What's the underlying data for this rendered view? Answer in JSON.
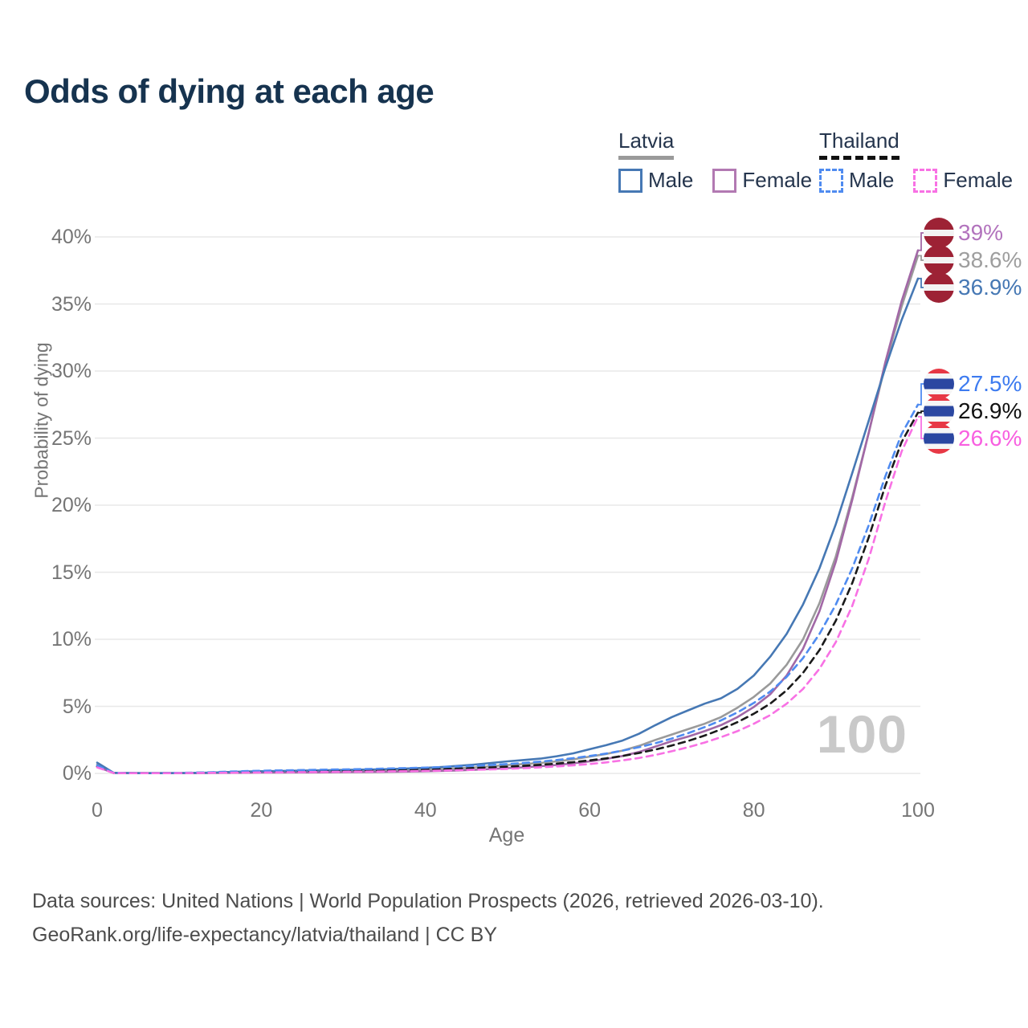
{
  "title": "Odds of dying at each age",
  "legend": {
    "groups": [
      {
        "country": "Latvia",
        "line_style": "solid",
        "underline_color": "#9a9a9a",
        "items": [
          {
            "label": "Male",
            "color": "#4678b4"
          },
          {
            "label": "Female",
            "color": "#b279b2"
          }
        ]
      },
      {
        "country": "Thailand",
        "line_style": "dashed",
        "underline_color": "#111111",
        "items": [
          {
            "label": "Male",
            "color": "#4f8bf0"
          },
          {
            "label": "Female",
            "color": "#f871e4"
          }
        ]
      }
    ]
  },
  "axes": {
    "xlabel": "Age",
    "ylabel": "Probability of dying",
    "xticks": [
      0,
      20,
      40,
      60,
      80,
      100
    ],
    "yticks": [
      "0%",
      "5%",
      "10%",
      "15%",
      "20%",
      "25%",
      "30%",
      "35%",
      "40%"
    ],
    "xlim": [
      0,
      100
    ],
    "ylim": [
      0,
      40
    ],
    "grid": true
  },
  "watermark": "100",
  "footer": {
    "line1": "Data sources: United Nations | World Population Prospects (2026, retrieved 2026-03-10).",
    "line2": "GeoRank.org/life-expectancy/latvia/thailand | CC BY"
  },
  "chart_data": {
    "type": "line",
    "title": "Odds of dying at each age",
    "xlabel": "Age",
    "ylabel": "Probability of dying",
    "x_ages": [
      0,
      2,
      4,
      6,
      8,
      10,
      12,
      14,
      16,
      18,
      20,
      22,
      24,
      26,
      28,
      30,
      32,
      34,
      36,
      38,
      40,
      42,
      44,
      46,
      48,
      50,
      52,
      54,
      56,
      58,
      60,
      62,
      64,
      66,
      68,
      70,
      72,
      74,
      76,
      78,
      80,
      82,
      84,
      86,
      88,
      90,
      92,
      94,
      96,
      98,
      100
    ],
    "series": [
      {
        "name": "Latvia Male",
        "country": "latvia",
        "color": "#4678b4",
        "dash": false,
        "end_label": "36.9%",
        "end_label_color": "#4678b4",
        "values": [
          0.8,
          0.05,
          0.03,
          0.02,
          0.02,
          0.03,
          0.04,
          0.06,
          0.1,
          0.14,
          0.16,
          0.18,
          0.2,
          0.22,
          0.24,
          0.26,
          0.28,
          0.3,
          0.33,
          0.37,
          0.42,
          0.48,
          0.56,
          0.66,
          0.78,
          0.9,
          1.0,
          1.1,
          1.28,
          1.5,
          1.8,
          2.1,
          2.45,
          2.95,
          3.6,
          4.2,
          4.7,
          5.2,
          5.6,
          6.3,
          7.3,
          8.7,
          10.4,
          12.6,
          15.3,
          18.6,
          22.4,
          26.3,
          30.2,
          33.8,
          36.9
        ]
      },
      {
        "name": "Latvia Female",
        "country": "latvia",
        "color": "#a268a6",
        "dash": false,
        "end_label": "39%",
        "end_label_color": "#b273bd",
        "values": [
          0.5,
          0.03,
          0.02,
          0.015,
          0.015,
          0.02,
          0.02,
          0.03,
          0.04,
          0.05,
          0.06,
          0.06,
          0.07,
          0.07,
          0.08,
          0.09,
          0.1,
          0.11,
          0.12,
          0.14,
          0.16,
          0.19,
          0.22,
          0.27,
          0.33,
          0.4,
          0.46,
          0.54,
          0.63,
          0.75,
          0.9,
          1.08,
          1.3,
          1.6,
          2.0,
          2.4,
          2.75,
          3.15,
          3.6,
          4.2,
          4.95,
          5.9,
          7.3,
          9.3,
          12.1,
          15.8,
          20.4,
          25.4,
          30.6,
          35.2,
          39.0
        ]
      },
      {
        "name": "Latvia Both sexes",
        "country": "latvia",
        "color": "#9a9a9a",
        "dash": false,
        "end_label": "38.6%",
        "end_label_color": "#9e9e9e",
        "values": [
          0.65,
          0.04,
          0.03,
          0.02,
          0.02,
          0.02,
          0.03,
          0.05,
          0.07,
          0.1,
          0.11,
          0.12,
          0.13,
          0.15,
          0.16,
          0.18,
          0.19,
          0.21,
          0.23,
          0.26,
          0.29,
          0.33,
          0.38,
          0.45,
          0.53,
          0.62,
          0.7,
          0.78,
          0.9,
          1.05,
          1.25,
          1.45,
          1.7,
          2.05,
          2.5,
          2.9,
          3.3,
          3.7,
          4.2,
          4.9,
          5.7,
          6.7,
          8.1,
          10.0,
          12.7,
          16.2,
          20.6,
          25.4,
          30.4,
          34.8,
          38.6
        ]
      },
      {
        "name": "Thailand Male",
        "country": "thailand",
        "color": "#4f8bf0",
        "dash": true,
        "end_label": "27.5%",
        "end_label_color": "#3d7bf0",
        "values": [
          0.6,
          0.04,
          0.03,
          0.02,
          0.03,
          0.04,
          0.06,
          0.09,
          0.13,
          0.17,
          0.2,
          0.22,
          0.24,
          0.26,
          0.28,
          0.3,
          0.32,
          0.34,
          0.37,
          0.4,
          0.43,
          0.47,
          0.52,
          0.57,
          0.63,
          0.7,
          0.78,
          0.88,
          1.0,
          1.14,
          1.3,
          1.48,
          1.7,
          1.95,
          2.25,
          2.6,
          3.0,
          3.45,
          3.95,
          4.55,
          5.25,
          6.1,
          7.2,
          8.6,
          10.4,
          12.6,
          15.3,
          18.5,
          22.1,
          25.3,
          27.5
        ]
      },
      {
        "name": "Thailand Both sexes",
        "country": "thailand",
        "color": "#1a1a1a",
        "dash": true,
        "end_label": "26.9%",
        "end_label_color": "#111111",
        "values": [
          0.52,
          0.035,
          0.025,
          0.02,
          0.025,
          0.03,
          0.045,
          0.065,
          0.09,
          0.12,
          0.14,
          0.15,
          0.16,
          0.17,
          0.19,
          0.2,
          0.22,
          0.23,
          0.25,
          0.27,
          0.3,
          0.33,
          0.36,
          0.4,
          0.45,
          0.5,
          0.56,
          0.64,
          0.73,
          0.84,
          0.97,
          1.12,
          1.3,
          1.52,
          1.78,
          2.08,
          2.42,
          2.82,
          3.28,
          3.82,
          4.45,
          5.2,
          6.2,
          7.5,
          9.2,
          11.4,
          14.2,
          17.6,
          21.4,
          24.7,
          26.9
        ]
      },
      {
        "name": "Thailand Female",
        "country": "thailand",
        "color": "#f871e4",
        "dash": true,
        "end_label": "26.6%",
        "end_label_color": "#f85fe0",
        "values": [
          0.45,
          0.03,
          0.02,
          0.015,
          0.02,
          0.025,
          0.03,
          0.04,
          0.05,
          0.06,
          0.07,
          0.08,
          0.09,
          0.1,
          0.11,
          0.12,
          0.13,
          0.14,
          0.16,
          0.17,
          0.19,
          0.21,
          0.24,
          0.27,
          0.3,
          0.34,
          0.39,
          0.45,
          0.52,
          0.6,
          0.7,
          0.82,
          0.97,
          1.15,
          1.38,
          1.65,
          1.95,
          2.3,
          2.7,
          3.15,
          3.7,
          4.35,
          5.2,
          6.3,
          7.8,
          9.8,
          12.5,
          16.0,
          20.2,
          24.0,
          26.6
        ]
      }
    ]
  }
}
